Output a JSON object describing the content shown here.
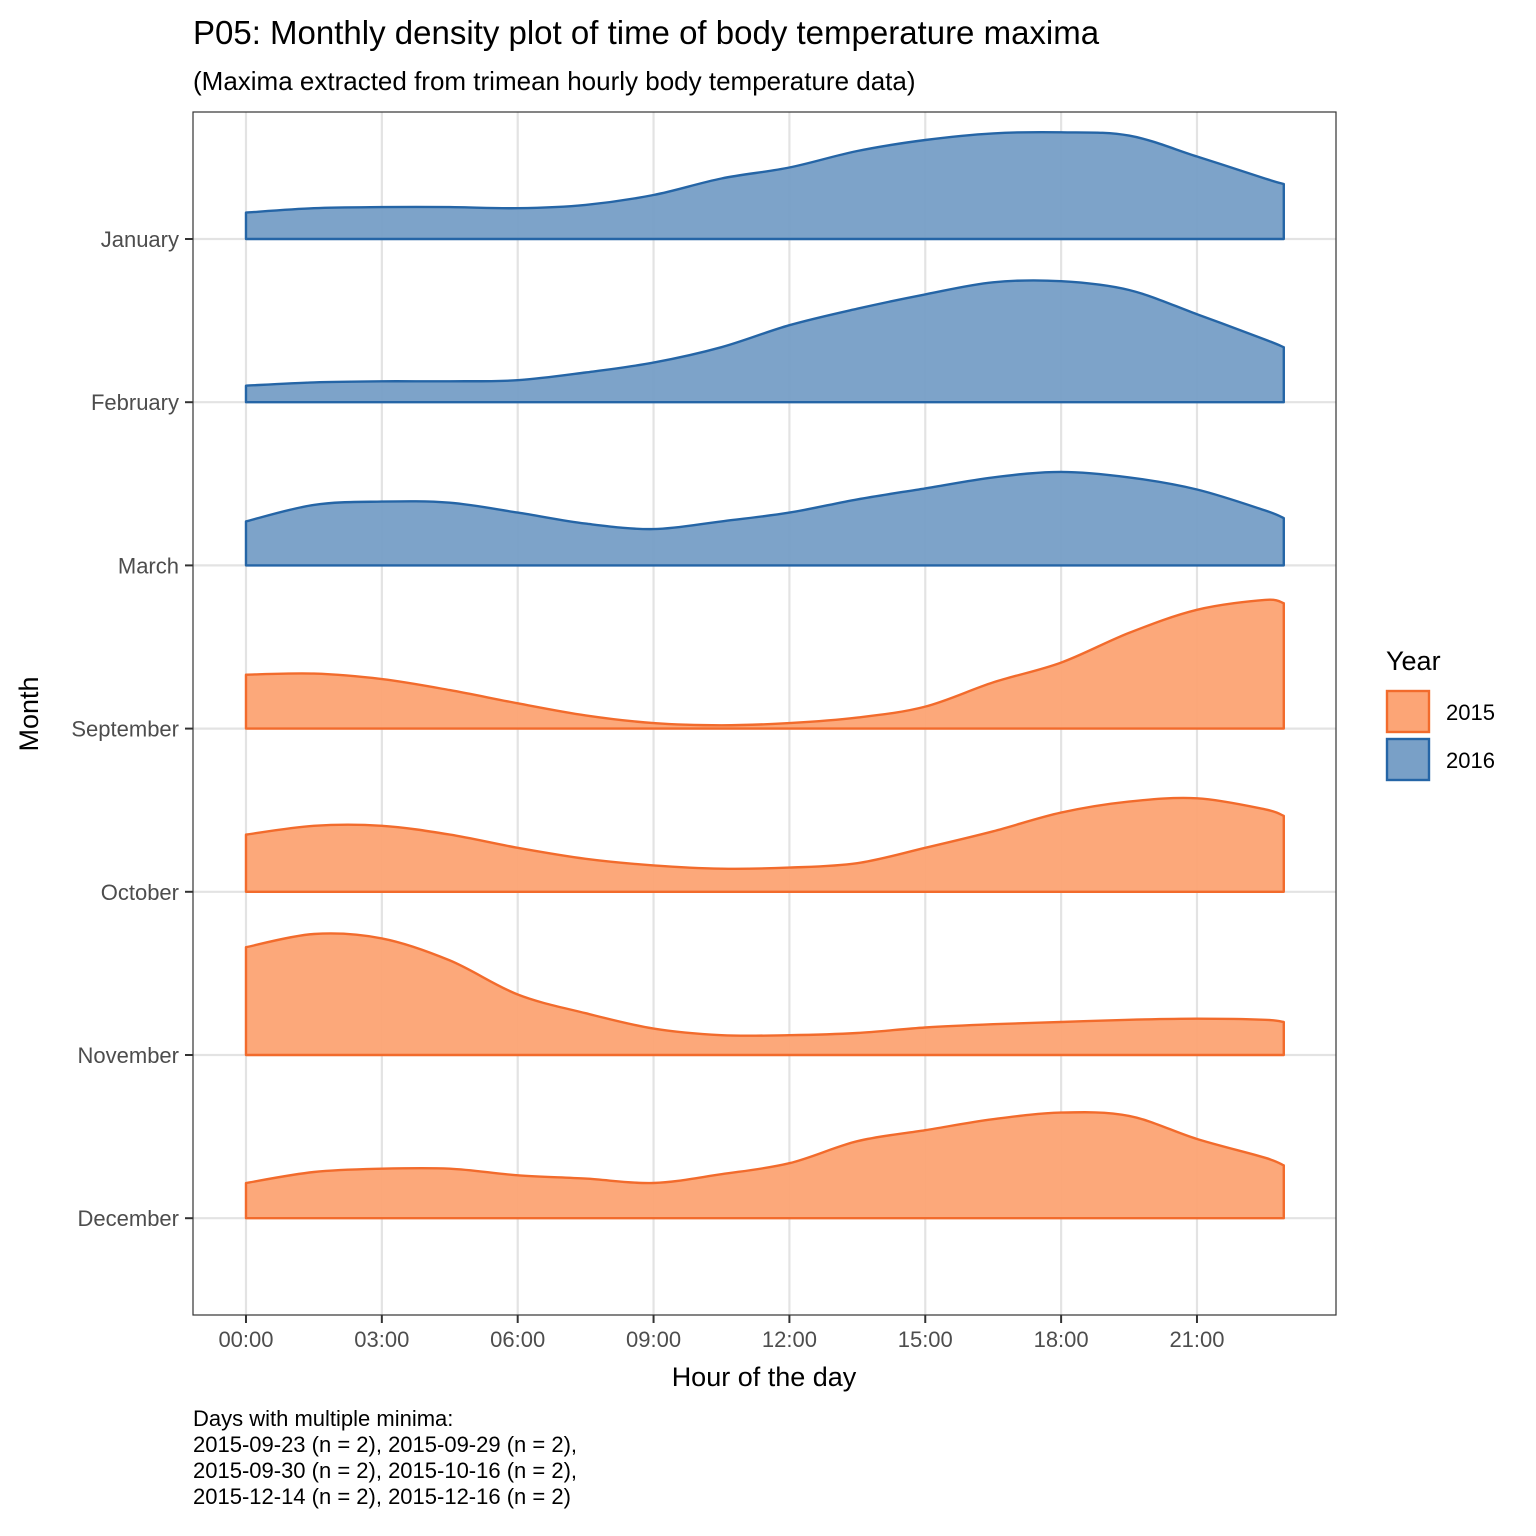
{
  "chart_data": {
    "type": "area",
    "title": "P05: Monthly density plot of time of body temperature maxima",
    "subtitle": "(Maxima extracted from trimean hourly body temperature data)",
    "xlabel": "Hour of the day",
    "ylabel": "Month",
    "x_ticks": [
      "00:00",
      "03:00",
      "06:00",
      "09:00",
      "12:00",
      "15:00",
      "18:00",
      "21:00"
    ],
    "x_tick_hours": [
      0,
      3,
      6,
      9,
      12,
      15,
      18,
      21
    ],
    "xlim": [
      -1.17,
      24.07
    ],
    "grid": true,
    "legend": {
      "title": "Year",
      "position": "right",
      "entries": [
        {
          "label": "2015",
          "fill": "#fca576",
          "stroke": "#f26b2c"
        },
        {
          "label": "2016",
          "fill": "#79a0c7",
          "stroke": "#2565a6"
        }
      ]
    },
    "months": [
      "January",
      "February",
      "March",
      "September",
      "October",
      "November",
      "December"
    ],
    "x": [
      0,
      1.5,
      3,
      4.5,
      6,
      7.5,
      9,
      10.5,
      12,
      13.5,
      15,
      16.5,
      18,
      19.5,
      21,
      22.5,
      22.917
    ],
    "series": [
      {
        "month": "January",
        "year": "2016",
        "values": [
          0.24,
          0.28,
          0.29,
          0.29,
          0.28,
          0.31,
          0.4,
          0.55,
          0.65,
          0.8,
          0.9,
          0.96,
          0.97,
          0.94,
          0.75,
          0.55,
          0.5
        ]
      },
      {
        "month": "February",
        "year": "2016",
        "values": [
          0.15,
          0.18,
          0.19,
          0.19,
          0.2,
          0.27,
          0.36,
          0.5,
          0.7,
          0.85,
          0.98,
          1.09,
          1.1,
          1.02,
          0.8,
          0.57,
          0.5
        ]
      },
      {
        "month": "March",
        "year": "2016",
        "values": [
          0.4,
          0.55,
          0.58,
          0.57,
          0.48,
          0.38,
          0.33,
          0.4,
          0.48,
          0.6,
          0.7,
          0.8,
          0.85,
          0.8,
          0.69,
          0.5,
          0.43
        ]
      },
      {
        "month": "September",
        "year": "2015",
        "values": [
          0.49,
          0.5,
          0.45,
          0.35,
          0.23,
          0.12,
          0.05,
          0.03,
          0.05,
          0.1,
          0.2,
          0.42,
          0.6,
          0.87,
          1.08,
          1.17,
          1.14
        ]
      },
      {
        "month": "October",
        "year": "2015",
        "values": [
          0.52,
          0.6,
          0.6,
          0.52,
          0.4,
          0.3,
          0.24,
          0.21,
          0.22,
          0.26,
          0.4,
          0.55,
          0.72,
          0.82,
          0.85,
          0.75,
          0.69
        ]
      },
      {
        "month": "November",
        "year": "2015",
        "values": [
          0.98,
          1.1,
          1.06,
          0.86,
          0.55,
          0.38,
          0.24,
          0.18,
          0.18,
          0.2,
          0.25,
          0.28,
          0.3,
          0.32,
          0.33,
          0.32,
          0.3
        ]
      },
      {
        "month": "December",
        "year": "2015",
        "values": [
          0.32,
          0.42,
          0.45,
          0.45,
          0.39,
          0.36,
          0.32,
          0.4,
          0.5,
          0.7,
          0.8,
          0.9,
          0.96,
          0.93,
          0.72,
          0.55,
          0.48
        ]
      }
    ]
  },
  "caption": {
    "lines": [
      "Days with multiple minima:",
      "2015-09-23 (n = 2), 2015-09-29 (n = 2),",
      "2015-09-30 (n = 2), 2015-10-16 (n = 2),",
      "2015-12-14 (n = 2), 2015-12-16 (n = 2)"
    ]
  }
}
